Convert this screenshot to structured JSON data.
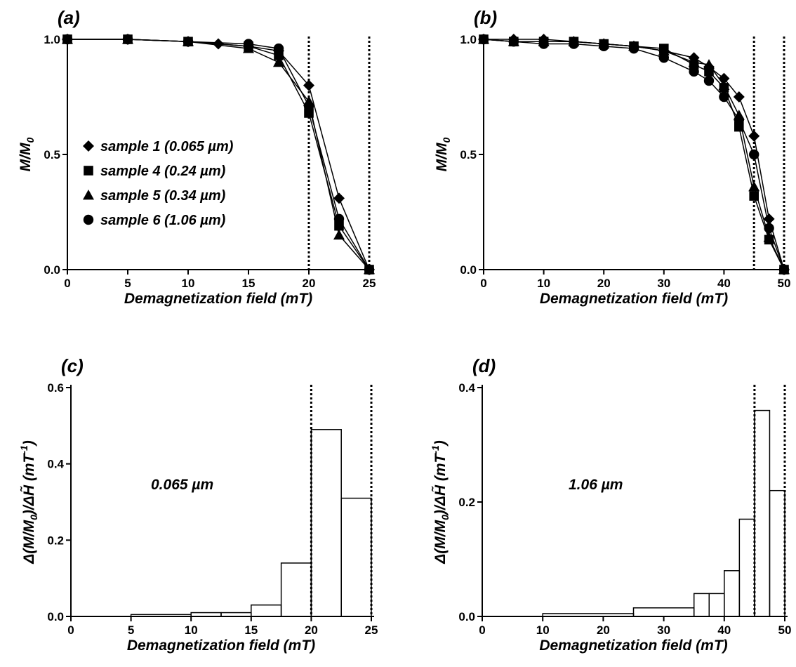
{
  "chart_data": [
    {
      "type": "line",
      "panel_label": "(a)",
      "xlabel": "Demagnetization field (mT)",
      "ylabel_main": "M/M",
      "ylabel_sub": "0",
      "xlim": [
        0,
        25
      ],
      "ylim": [
        0,
        1
      ],
      "xticks": [
        "0",
        "5",
        "10",
        "15",
        "20",
        "25"
      ],
      "yticks": [
        "0.0",
        "0.5",
        "1.0"
      ],
      "vlines": [
        20,
        25
      ],
      "legend_position": "center-left",
      "series": [
        {
          "name": "sample 1 (0.065  µm)",
          "marker": "diamond",
          "x": [
            0,
            5,
            10,
            12.5,
            15,
            17.5,
            20,
            22.5,
            25
          ],
          "y": [
            1.0,
            1.0,
            0.99,
            0.98,
            0.97,
            0.95,
            0.8,
            0.31,
            0.0
          ]
        },
        {
          "name": "sample 4 (0.24  µm)",
          "marker": "square",
          "x": [
            0,
            5,
            10,
            15,
            17.5,
            20,
            22.5,
            25
          ],
          "y": [
            1.0,
            1.0,
            0.99,
            0.97,
            0.93,
            0.68,
            0.19,
            0.0
          ]
        },
        {
          "name": "sample 5 (0.34  µm)",
          "marker": "triangle",
          "x": [
            0,
            5,
            10,
            15,
            17.5,
            20,
            22.5,
            25
          ],
          "y": [
            1.0,
            1.0,
            0.99,
            0.96,
            0.9,
            0.73,
            0.15,
            0.0
          ]
        },
        {
          "name": "sample 6 (1.06  µm)",
          "marker": "circle",
          "x": [
            0,
            5,
            10,
            15,
            17.5,
            20,
            22.5,
            25
          ],
          "y": [
            1.0,
            1.0,
            0.99,
            0.98,
            0.96,
            0.71,
            0.22,
            0.0
          ]
        }
      ]
    },
    {
      "type": "line",
      "panel_label": "(b)",
      "xlabel": "Demagnetization field (mT)",
      "ylabel_main": "M/M",
      "ylabel_sub": "0",
      "xlim": [
        0,
        50
      ],
      "ylim": [
        0,
        1
      ],
      "xticks": [
        "0",
        "10",
        "20",
        "30",
        "40",
        "50"
      ],
      "yticks": [
        "0.0",
        "0.5",
        "1.0"
      ],
      "vlines": [
        45,
        50
      ],
      "series": [
        {
          "name": "sample 1",
          "marker": "diamond",
          "x": [
            0,
            5,
            10,
            15,
            20,
            25,
            30,
            35,
            37.5,
            40,
            42.5,
            45,
            47.5,
            50
          ],
          "y": [
            1.0,
            1.0,
            1.0,
            0.99,
            0.98,
            0.97,
            0.95,
            0.92,
            0.88,
            0.83,
            0.75,
            0.58,
            0.22,
            0.0
          ]
        },
        {
          "name": "sample 4",
          "marker": "square",
          "x": [
            0,
            5,
            10,
            15,
            20,
            25,
            30,
            35,
            37.5,
            40,
            42.5,
            45,
            47.5,
            50
          ],
          "y": [
            1.0,
            0.99,
            0.99,
            0.99,
            0.98,
            0.97,
            0.96,
            0.89,
            0.86,
            0.79,
            0.62,
            0.32,
            0.13,
            0.0
          ]
        },
        {
          "name": "sample 5",
          "marker": "triangle",
          "x": [
            0,
            5,
            10,
            15,
            20,
            25,
            30,
            35,
            37.5,
            40,
            42.5,
            45,
            47.5,
            50
          ],
          "y": [
            1.0,
            0.99,
            0.99,
            0.99,
            0.98,
            0.97,
            0.95,
            0.9,
            0.89,
            0.8,
            0.67,
            0.36,
            0.14,
            0.0
          ]
        },
        {
          "name": "sample 6",
          "marker": "circle",
          "x": [
            0,
            5,
            10,
            15,
            20,
            25,
            30,
            35,
            37.5,
            40,
            42.5,
            45,
            47.5,
            50
          ],
          "y": [
            1.0,
            0.99,
            0.98,
            0.98,
            0.97,
            0.96,
            0.92,
            0.86,
            0.82,
            0.75,
            0.65,
            0.5,
            0.18,
            0.0
          ]
        }
      ]
    },
    {
      "type": "bar",
      "panel_label": "(c)",
      "xlabel": "Demagnetization field (mT)",
      "ylabel_main": "Δ(M/M",
      "ylabel_sub": "0",
      "ylabel_mid": ")/ΔH̃  (mT",
      "ylabel_sup": "-1",
      "ylabel_end": ")",
      "annotation": "0.065 µm",
      "xlim": [
        0,
        25
      ],
      "ylim": [
        0,
        0.6
      ],
      "xticks": [
        "0",
        "5",
        "10",
        "15",
        "20",
        "25"
      ],
      "yticks": [
        "0.0",
        "0.2",
        "0.4",
        "0.6"
      ],
      "vlines": [
        20,
        25
      ],
      "bins": [
        [
          0,
          5
        ],
        [
          5,
          10
        ],
        [
          10,
          12.5
        ],
        [
          12.5,
          15
        ],
        [
          15,
          17.5
        ],
        [
          17.5,
          20
        ],
        [
          20,
          22.5
        ],
        [
          22.5,
          25
        ]
      ],
      "values": [
        0.0,
        0.005,
        0.01,
        0.01,
        0.03,
        0.14,
        0.49,
        0.31
      ]
    },
    {
      "type": "bar",
      "panel_label": "(d)",
      "xlabel": "Demagnetization field (mT)",
      "ylabel_main": "Δ(M/M",
      "ylabel_sub": "0",
      "ylabel_mid": ")/ΔH̃  (mT",
      "ylabel_sup": "-1",
      "ylabel_end": ")",
      "annotation": "1.06 µm",
      "xlim": [
        0,
        50
      ],
      "ylim": [
        0,
        0.4
      ],
      "xticks": [
        "0",
        "10",
        "20",
        "30",
        "40",
        "50"
      ],
      "yticks": [
        "0.0",
        "0.2",
        "0.4"
      ],
      "vlines": [
        45,
        50
      ],
      "bins": [
        [
          0,
          10
        ],
        [
          10,
          25
        ],
        [
          25,
          35
        ],
        [
          35,
          37.5
        ],
        [
          37.5,
          40
        ],
        [
          40,
          42.5
        ],
        [
          42.5,
          45
        ],
        [
          45,
          47.5
        ],
        [
          47.5,
          50
        ]
      ],
      "values": [
        0.0,
        0.005,
        0.015,
        0.04,
        0.04,
        0.08,
        0.17,
        0.36,
        0.22
      ]
    }
  ]
}
